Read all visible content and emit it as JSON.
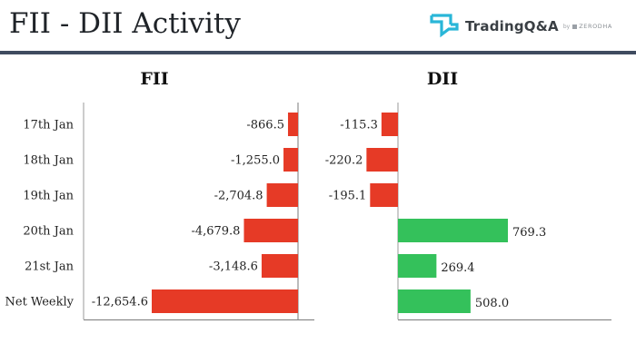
{
  "header": {
    "title": "FII - DII Activity",
    "brand": "TradingQ&A",
    "brand_by": "by",
    "brand_sub": "ZERODHA"
  },
  "colors": {
    "negative": "#e63a26",
    "positive": "#34c15b",
    "header_rule": "#3f4b5f",
    "logo": "#29b6d8"
  },
  "chart_data": {
    "type": "bar",
    "orientation": "horizontal",
    "categories": [
      "17th Jan",
      "18th Jan",
      "19th Jan",
      "20th Jan",
      "21st Jan",
      "Net Weekly"
    ],
    "series": [
      {
        "name": "FII",
        "values": [
          -866.5,
          -1255.0,
          -2704.8,
          -4679.8,
          -3148.6,
          -12654.6
        ],
        "labels": [
          "-866.5",
          "-1,255.0",
          "-2,704.8",
          "-4,679.8",
          "-3,148.6",
          "-12,654.6"
        ]
      },
      {
        "name": "DII",
        "values": [
          -115.3,
          -220.2,
          -195.1,
          769.3,
          269.4,
          508.0
        ],
        "labels": [
          "-115.3",
          "-220.2",
          "-195.1",
          "769.3",
          "269.4",
          "508.0"
        ]
      }
    ],
    "grid": false,
    "legend": "none"
  }
}
